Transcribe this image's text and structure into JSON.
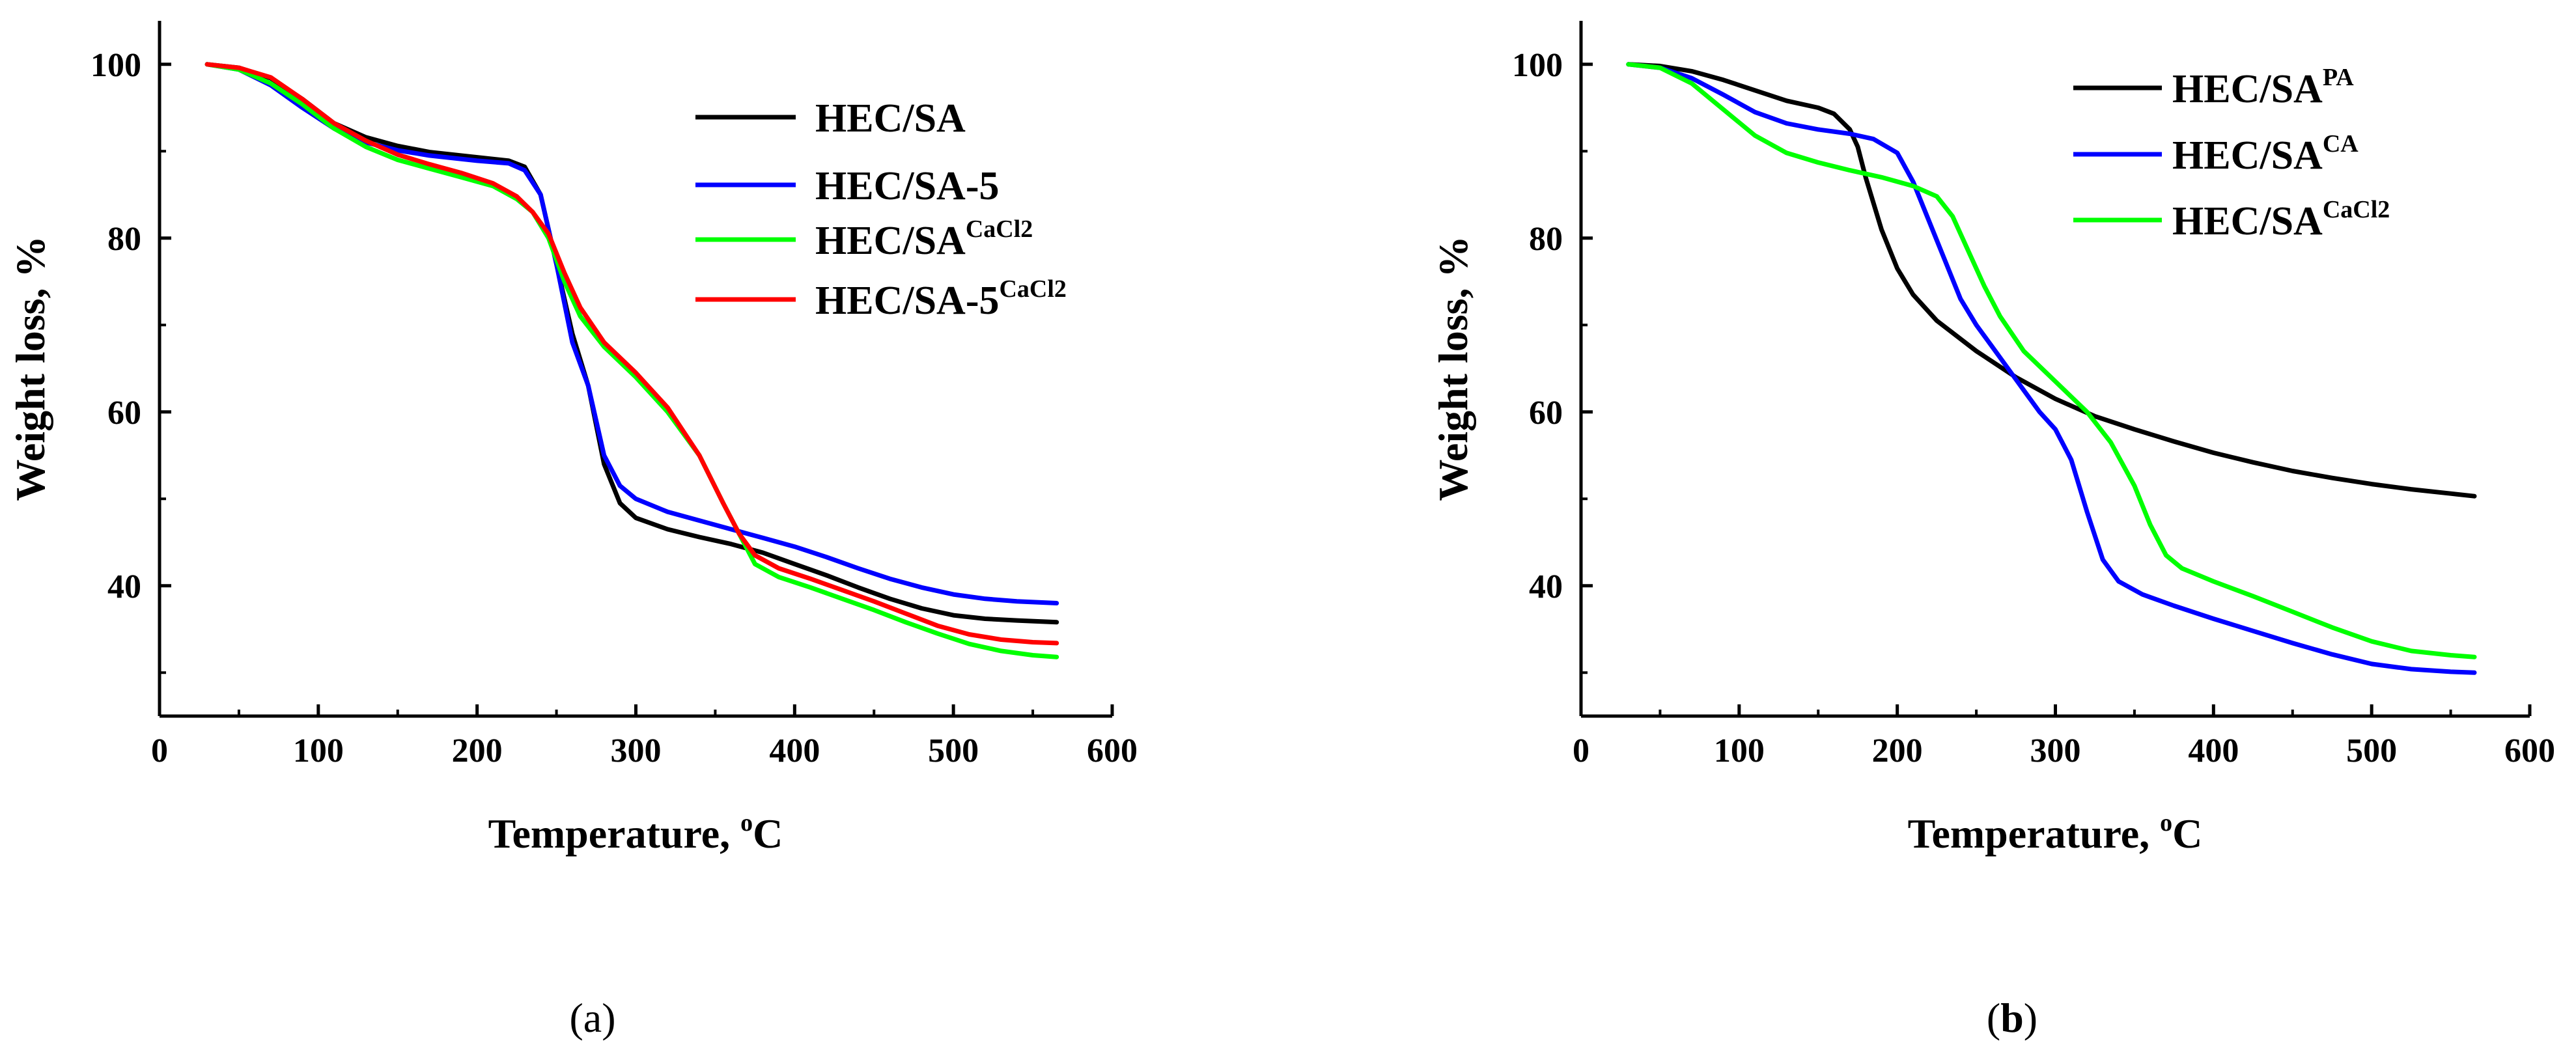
{
  "chart_data": [
    {
      "type": "line",
      "panel_label": "a",
      "xlabel_main": "Temperature, ",
      "xlabel_sup": "o",
      "xlabel_unit": "C",
      "ylabel": "Weight loss, %",
      "xlim": [
        0,
        600
      ],
      "ylim": [
        25,
        105
      ],
      "xticks": [
        0,
        100,
        200,
        300,
        400,
        500,
        600
      ],
      "yticks": [
        40,
        60,
        80,
        100
      ],
      "legend_position": "top-right",
      "series": [
        {
          "name_main": "HEC/SA",
          "name_sup": "",
          "color": "#000000",
          "points": [
            [
              30,
              100
            ],
            [
              50,
              99.6
            ],
            [
              70,
              98.4
            ],
            [
              90,
              96
            ],
            [
              110,
              93.2
            ],
            [
              130,
              91.6
            ],
            [
              150,
              90.6
            ],
            [
              170,
              89.9
            ],
            [
              200,
              89.3
            ],
            [
              220,
              88.9
            ],
            [
              230,
              88.2
            ],
            [
              240,
              85
            ],
            [
              250,
              77
            ],
            [
              260,
              69
            ],
            [
              270,
              63
            ],
            [
              280,
              54
            ],
            [
              290,
              49.5
            ],
            [
              300,
              47.8
            ],
            [
              320,
              46.5
            ],
            [
              340,
              45.6
            ],
            [
              360,
              44.8
            ],
            [
              380,
              43.8
            ],
            [
              400,
              42.5
            ],
            [
              420,
              41.2
            ],
            [
              440,
              39.8
            ],
            [
              460,
              38.5
            ],
            [
              480,
              37.4
            ],
            [
              500,
              36.6
            ],
            [
              520,
              36.2
            ],
            [
              540,
              36
            ],
            [
              565,
              35.8
            ]
          ]
        },
        {
          "name_main": "HEC/SA-5",
          "name_sup": "",
          "color": "#0000ff",
          "points": [
            [
              30,
              100
            ],
            [
              50,
              99.4
            ],
            [
              70,
              97.6
            ],
            [
              90,
              95
            ],
            [
              110,
              92.6
            ],
            [
              130,
              91
            ],
            [
              150,
              90.1
            ],
            [
              170,
              89.5
            ],
            [
              200,
              88.9
            ],
            [
              220,
              88.6
            ],
            [
              230,
              87.8
            ],
            [
              240,
              85
            ],
            [
              250,
              77
            ],
            [
              260,
              68
            ],
            [
              270,
              63
            ],
            [
              280,
              55
            ],
            [
              290,
              51.5
            ],
            [
              300,
              50
            ],
            [
              320,
              48.5
            ],
            [
              340,
              47.5
            ],
            [
              360,
              46.5
            ],
            [
              380,
              45.5
            ],
            [
              400,
              44.5
            ],
            [
              420,
              43.3
            ],
            [
              440,
              42
            ],
            [
              460,
              40.8
            ],
            [
              480,
              39.8
            ],
            [
              500,
              39
            ],
            [
              520,
              38.5
            ],
            [
              540,
              38.2
            ],
            [
              565,
              38
            ]
          ]
        },
        {
          "name_main": "HEC/SA",
          "name_sup": "CaCl2",
          "color": "#00ff00",
          "points": [
            [
              30,
              100
            ],
            [
              50,
              99.4
            ],
            [
              70,
              97.8
            ],
            [
              90,
              95.4
            ],
            [
              110,
              92.6
            ],
            [
              130,
              90.5
            ],
            [
              150,
              89
            ],
            [
              170,
              88
            ],
            [
              190,
              87
            ],
            [
              210,
              86
            ],
            [
              225,
              84.5
            ],
            [
              235,
              83
            ],
            [
              245,
              80
            ],
            [
              255,
              75
            ],
            [
              265,
              71
            ],
            [
              280,
              67.5
            ],
            [
              300,
              64
            ],
            [
              320,
              60
            ],
            [
              340,
              55
            ],
            [
              355,
              49.5
            ],
            [
              365,
              46
            ],
            [
              375,
              42.5
            ],
            [
              390,
              41
            ],
            [
              410,
              39.8
            ],
            [
              430,
              38.5
            ],
            [
              450,
              37.2
            ],
            [
              470,
              35.8
            ],
            [
              490,
              34.5
            ],
            [
              510,
              33.3
            ],
            [
              530,
              32.5
            ],
            [
              550,
              32
            ],
            [
              565,
              31.8
            ]
          ]
        },
        {
          "name_main": "HEC/SA-5",
          "name_sup": "CaCl2",
          "color": "#ff0000",
          "points": [
            [
              30,
              100
            ],
            [
              50,
              99.6
            ],
            [
              70,
              98.5
            ],
            [
              90,
              96
            ],
            [
              110,
              93.2
            ],
            [
              130,
              91.2
            ],
            [
              150,
              89.6
            ],
            [
              170,
              88.5
            ],
            [
              190,
              87.5
            ],
            [
              210,
              86.3
            ],
            [
              225,
              84.8
            ],
            [
              235,
              83
            ],
            [
              245,
              80.5
            ],
            [
              255,
              76
            ],
            [
              265,
              72
            ],
            [
              280,
              68
            ],
            [
              300,
              64.5
            ],
            [
              320,
              60.5
            ],
            [
              340,
              55
            ],
            [
              355,
              49.5
            ],
            [
              365,
              46
            ],
            [
              375,
              43.5
            ],
            [
              390,
              42
            ],
            [
              410,
              40.8
            ],
            [
              430,
              39.5
            ],
            [
              450,
              38.2
            ],
            [
              470,
              36.8
            ],
            [
              490,
              35.4
            ],
            [
              510,
              34.4
            ],
            [
              530,
              33.8
            ],
            [
              550,
              33.5
            ],
            [
              565,
              33.4
            ]
          ]
        }
      ]
    },
    {
      "type": "line",
      "panel_label": "b",
      "xlabel_main": "Temperature, ",
      "xlabel_sup": "o",
      "xlabel_unit": "C",
      "ylabel": "Weight loss, %",
      "xlim": [
        0,
        600
      ],
      "ylim": [
        25,
        105
      ],
      "xticks": [
        0,
        100,
        200,
        300,
        400,
        500,
        600
      ],
      "yticks": [
        40,
        60,
        80,
        100
      ],
      "legend_position": "top-right",
      "series": [
        {
          "name_main": "HEC/SA",
          "name_sup": "PA",
          "color": "#000000",
          "points": [
            [
              30,
              100
            ],
            [
              50,
              99.8
            ],
            [
              70,
              99.2
            ],
            [
              90,
              98.2
            ],
            [
              110,
              97
            ],
            [
              130,
              95.8
            ],
            [
              150,
              95
            ],
            [
              160,
              94.3
            ],
            [
              170,
              92.5
            ],
            [
              175,
              90.5
            ],
            [
              180,
              87
            ],
            [
              190,
              81
            ],
            [
              200,
              76.5
            ],
            [
              210,
              73.5
            ],
            [
              225,
              70.5
            ],
            [
              250,
              67
            ],
            [
              275,
              64
            ],
            [
              300,
              61.5
            ],
            [
              325,
              59.5
            ],
            [
              350,
              58
            ],
            [
              375,
              56.6
            ],
            [
              400,
              55.3
            ],
            [
              425,
              54.2
            ],
            [
              450,
              53.2
            ],
            [
              475,
              52.4
            ],
            [
              500,
              51.7
            ],
            [
              525,
              51.1
            ],
            [
              550,
              50.6
            ],
            [
              565,
              50.3
            ]
          ]
        },
        {
          "name_main": "HEC/SA",
          "name_sup": "CA",
          "color": "#0000ff",
          "points": [
            [
              30,
              100
            ],
            [
              50,
              99.6
            ],
            [
              70,
              98.4
            ],
            [
              90,
              96.5
            ],
            [
              110,
              94.5
            ],
            [
              130,
              93.2
            ],
            [
              150,
              92.5
            ],
            [
              170,
              92
            ],
            [
              185,
              91.4
            ],
            [
              200,
              89.8
            ],
            [
              210,
              86.5
            ],
            [
              220,
              82
            ],
            [
              230,
              77.5
            ],
            [
              240,
              73
            ],
            [
              250,
              70
            ],
            [
              260,
              67.5
            ],
            [
              270,
              65
            ],
            [
              280,
              62.5
            ],
            [
              290,
              60
            ],
            [
              300,
              58
            ],
            [
              310,
              54.5
            ],
            [
              320,
              48.5
            ],
            [
              330,
              43
            ],
            [
              340,
              40.5
            ],
            [
              355,
              39
            ],
            [
              375,
              37.7
            ],
            [
              400,
              36.2
            ],
            [
              425,
              34.8
            ],
            [
              450,
              33.4
            ],
            [
              475,
              32.1
            ],
            [
              500,
              31
            ],
            [
              525,
              30.4
            ],
            [
              550,
              30.1
            ],
            [
              565,
              30
            ]
          ]
        },
        {
          "name_main": "HEC/SA",
          "name_sup": "CaCl2",
          "color": "#00ff00",
          "points": [
            [
              30,
              100
            ],
            [
              50,
              99.6
            ],
            [
              70,
              97.8
            ],
            [
              90,
              94.8
            ],
            [
              110,
              91.8
            ],
            [
              130,
              89.8
            ],
            [
              150,
              88.7
            ],
            [
              170,
              87.8
            ],
            [
              190,
              87
            ],
            [
              210,
              86
            ],
            [
              225,
              84.8
            ],
            [
              235,
              82.5
            ],
            [
              245,
              78.5
            ],
            [
              255,
              74.5
            ],
            [
              265,
              71
            ],
            [
              280,
              67
            ],
            [
              300,
              63.5
            ],
            [
              320,
              60
            ],
            [
              335,
              56.5
            ],
            [
              350,
              51.5
            ],
            [
              360,
              47
            ],
            [
              370,
              43.5
            ],
            [
              380,
              42
            ],
            [
              400,
              40.5
            ],
            [
              425,
              38.8
            ],
            [
              450,
              37
            ],
            [
              475,
              35.2
            ],
            [
              500,
              33.6
            ],
            [
              525,
              32.5
            ],
            [
              550,
              32
            ],
            [
              565,
              31.8
            ]
          ]
        }
      ]
    }
  ]
}
